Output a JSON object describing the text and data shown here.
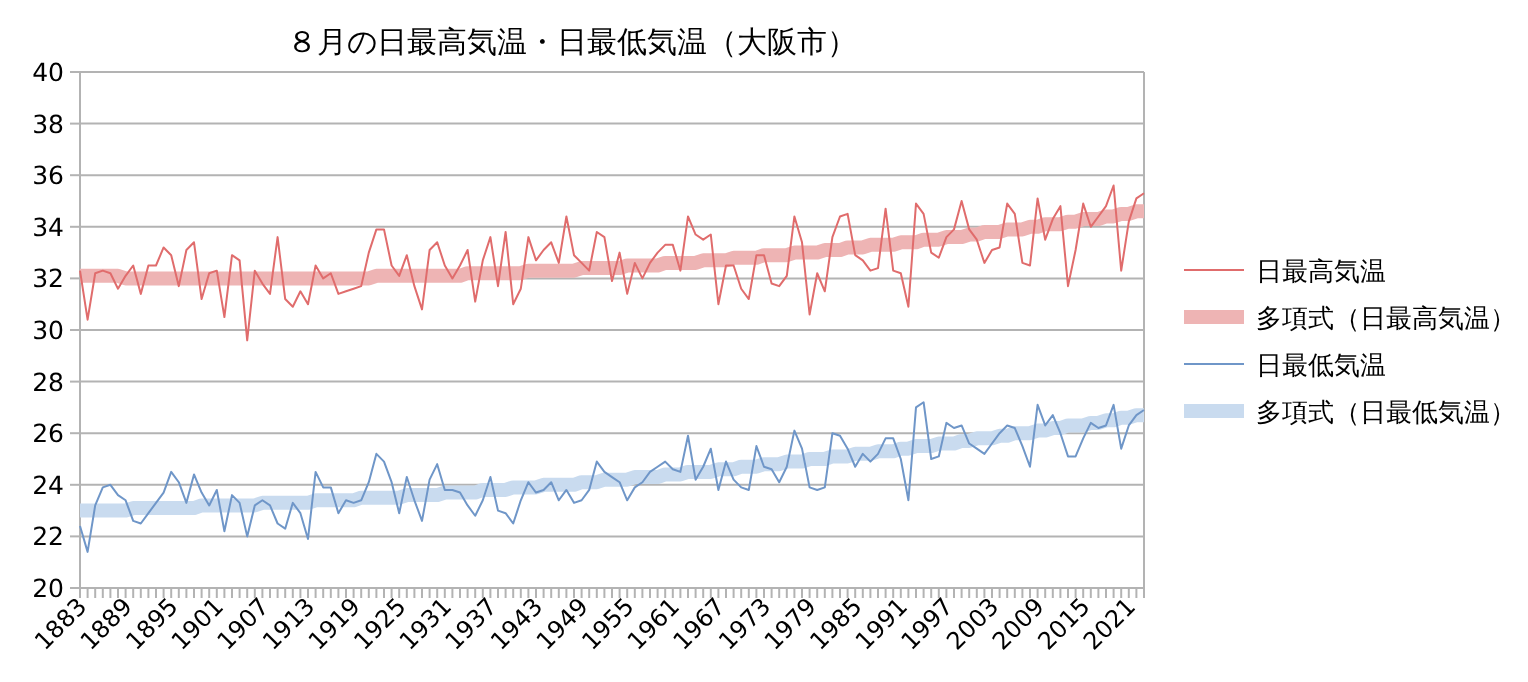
{
  "chart_data": {
    "type": "line",
    "title": "８月の日最高気温・日最低気温（大阪市）",
    "categories": [
      "1883",
      null,
      null,
      null,
      null,
      null,
      "1889",
      null,
      null,
      null,
      null,
      null,
      "1895",
      null,
      null,
      null,
      null,
      null,
      "1901",
      null,
      null,
      null,
      null,
      null,
      "1907",
      null,
      null,
      null,
      null,
      null,
      "1913",
      null,
      null,
      null,
      null,
      null,
      "1919",
      null,
      null,
      null,
      null,
      null,
      "1925",
      null,
      null,
      null,
      null,
      null,
      "1931",
      null,
      null,
      null,
      null,
      null,
      "1937",
      null,
      null,
      null,
      null,
      null,
      "1943",
      null,
      null,
      null,
      null,
      null,
      "1949",
      null,
      null,
      null,
      null,
      null,
      "1955",
      null,
      null,
      null,
      null,
      null,
      "1961",
      null,
      null,
      null,
      null,
      null,
      "1967",
      null,
      null,
      null,
      null,
      null,
      "1973",
      null,
      null,
      null,
      null,
      null,
      "1979",
      null,
      null,
      null,
      null,
      null,
      "1985",
      null,
      null,
      null,
      null,
      null,
      "1991",
      null,
      null,
      null,
      null,
      null,
      "1997",
      null,
      null,
      null,
      null,
      null,
      "2003",
      null,
      null,
      null,
      null,
      null,
      "2009",
      null,
      null,
      null,
      null,
      null,
      "2015",
      null,
      null,
      null,
      null,
      null,
      "2021",
      null,
      null
    ],
    "series": [
      {
        "name": "日最高気温",
        "color": "#e06c6c",
        "values": [
          32.3,
          30.4,
          32.2,
          32.3,
          32.2,
          31.6,
          32.1,
          32.5,
          31.4,
          32.5,
          32.5,
          33.2,
          32.9,
          31.7,
          33.1,
          33.4,
          31.2,
          32.2,
          32.3,
          30.5,
          32.9,
          32.7,
          29.6,
          32.3,
          31.8,
          31.4,
          33.6,
          31.2,
          30.9,
          31.5,
          31.0,
          32.5,
          32.0,
          32.2,
          31.4,
          31.5,
          31.6,
          31.7,
          33.0,
          33.9,
          33.9,
          32.5,
          32.1,
          32.9,
          31.7,
          30.8,
          33.1,
          33.4,
          32.5,
          32.0,
          32.5,
          33.1,
          31.1,
          32.7,
          33.6,
          31.7,
          33.8,
          31.0,
          31.6,
          33.6,
          32.7,
          33.1,
          33.4,
          32.6,
          34.4,
          32.9,
          32.6,
          32.3,
          33.8,
          33.6,
          31.9,
          33.0,
          31.4,
          32.6,
          32.0,
          32.6,
          33.0,
          33.3,
          33.3,
          32.3,
          34.4,
          33.7,
          33.5,
          33.7,
          31.0,
          32.5,
          32.5,
          31.6,
          31.2,
          32.9,
          32.9,
          31.8,
          31.7,
          32.1,
          34.4,
          33.4,
          30.6,
          32.2,
          31.5,
          33.6,
          34.4,
          34.5,
          32.9,
          32.7,
          32.3,
          32.4,
          34.7,
          32.3,
          32.2,
          30.9,
          34.9,
          34.5,
          33.0,
          32.8,
          33.6,
          33.9,
          35.0,
          33.9,
          33.5,
          32.6,
          33.1,
          33.2,
          34.9,
          34.5,
          32.6,
          32.5,
          35.1,
          33.5,
          34.3,
          34.8,
          31.7,
          33.1,
          34.9,
          34.0,
          34.4,
          34.8,
          35.6,
          32.3,
          34.2,
          35.1,
          35.3
        ]
      },
      {
        "name": "多項式（日最高気温）",
        "color": "#eeb4b4",
        "values": [
          32.1,
          32.1,
          32.1,
          32.1,
          32.1,
          32.1,
          32.0,
          32.0,
          32.0,
          32.0,
          32.0,
          32.0,
          32.0,
          32.0,
          32.0,
          32.0,
          32.0,
          32.0,
          32.0,
          32.0,
          32.0,
          32.0,
          32.0,
          32.0,
          32.0,
          32.0,
          32.0,
          32.0,
          32.0,
          32.0,
          32.0,
          32.0,
          32.0,
          32.0,
          32.0,
          32.0,
          32.0,
          32.0,
          32.0,
          32.1,
          32.1,
          32.1,
          32.1,
          32.1,
          32.1,
          32.1,
          32.1,
          32.1,
          32.1,
          32.1,
          32.1,
          32.2,
          32.2,
          32.2,
          32.2,
          32.2,
          32.2,
          32.2,
          32.2,
          32.3,
          32.3,
          32.3,
          32.3,
          32.3,
          32.3,
          32.3,
          32.4,
          32.4,
          32.4,
          32.4,
          32.4,
          32.4,
          32.5,
          32.5,
          32.5,
          32.5,
          32.5,
          32.6,
          32.6,
          32.6,
          32.6,
          32.6,
          32.7,
          32.7,
          32.7,
          32.7,
          32.8,
          32.8,
          32.8,
          32.8,
          32.9,
          32.9,
          32.9,
          32.9,
          33.0,
          33.0,
          33.0,
          33.0,
          33.1,
          33.1,
          33.1,
          33.2,
          33.2,
          33.2,
          33.3,
          33.3,
          33.3,
          33.3,
          33.4,
          33.4,
          33.4,
          33.5,
          33.5,
          33.5,
          33.6,
          33.6,
          33.6,
          33.7,
          33.7,
          33.8,
          33.8,
          33.8,
          33.9,
          33.9,
          33.9,
          34.0,
          34.0,
          34.1,
          34.1,
          34.1,
          34.2,
          34.2,
          34.3,
          34.3,
          34.3,
          34.4,
          34.4,
          34.5,
          34.5,
          34.6,
          34.6
        ]
      },
      {
        "name": "日最低気温",
        "color": "#6f96c8",
        "values": [
          22.4,
          21.4,
          23.2,
          23.9,
          24.0,
          23.6,
          23.4,
          22.6,
          22.5,
          22.9,
          23.3,
          23.7,
          24.5,
          24.1,
          23.3,
          24.4,
          23.7,
          23.2,
          23.8,
          22.2,
          23.6,
          23.3,
          22.0,
          23.2,
          23.4,
          23.2,
          22.5,
          22.3,
          23.3,
          22.9,
          21.9,
          24.5,
          23.9,
          23.9,
          22.9,
          23.4,
          23.3,
          23.4,
          24.1,
          25.2,
          24.9,
          24.1,
          22.9,
          24.3,
          23.4,
          22.6,
          24.2,
          24.8,
          23.8,
          23.8,
          23.7,
          23.2,
          22.8,
          23.4,
          24.3,
          23.0,
          22.9,
          22.5,
          23.4,
          24.1,
          23.7,
          23.8,
          24.1,
          23.4,
          23.8,
          23.3,
          23.4,
          23.8,
          24.9,
          24.5,
          24.3,
          24.1,
          23.4,
          23.9,
          24.1,
          24.5,
          24.7,
          24.9,
          24.6,
          24.5,
          25.9,
          24.2,
          24.7,
          25.4,
          23.8,
          24.9,
          24.2,
          23.9,
          23.8,
          25.5,
          24.7,
          24.6,
          24.1,
          24.7,
          26.1,
          25.4,
          23.9,
          23.8,
          23.9,
          26.0,
          25.9,
          25.4,
          24.7,
          25.2,
          24.9,
          25.2,
          25.8,
          25.8,
          25.0,
          23.4,
          27.0,
          27.2,
          25.0,
          25.1,
          26.4,
          26.2,
          26.3,
          25.6,
          25.4,
          25.2,
          25.6,
          26.0,
          26.3,
          26.2,
          25.5,
          24.7,
          27.1,
          26.3,
          26.7,
          26.0,
          25.1,
          25.1,
          25.8,
          26.4,
          26.2,
          26.3,
          27.1,
          25.4,
          26.3,
          26.7,
          26.9
        ]
      },
      {
        "name": "多項式（日最低気温）",
        "color": "#c9dbef",
        "values": [
          23.0,
          23.0,
          23.0,
          23.0,
          23.0,
          23.0,
          23.0,
          23.1,
          23.1,
          23.1,
          23.1,
          23.1,
          23.1,
          23.1,
          23.1,
          23.1,
          23.2,
          23.2,
          23.2,
          23.2,
          23.2,
          23.2,
          23.2,
          23.2,
          23.3,
          23.3,
          23.3,
          23.3,
          23.3,
          23.3,
          23.3,
          23.4,
          23.4,
          23.4,
          23.4,
          23.4,
          23.4,
          23.5,
          23.5,
          23.5,
          23.5,
          23.5,
          23.5,
          23.6,
          23.6,
          23.6,
          23.6,
          23.6,
          23.7,
          23.7,
          23.7,
          23.7,
          23.7,
          23.8,
          23.8,
          23.8,
          23.8,
          23.9,
          23.9,
          23.9,
          23.9,
          24.0,
          24.0,
          24.0,
          24.0,
          24.0,
          24.1,
          24.1,
          24.1,
          24.2,
          24.2,
          24.2,
          24.2,
          24.3,
          24.3,
          24.3,
          24.3,
          24.4,
          24.4,
          24.4,
          24.5,
          24.5,
          24.5,
          24.5,
          24.6,
          24.6,
          24.6,
          24.7,
          24.7,
          24.7,
          24.8,
          24.8,
          24.8,
          24.9,
          24.9,
          24.9,
          25.0,
          25.0,
          25.0,
          25.1,
          25.1,
          25.1,
          25.2,
          25.2,
          25.2,
          25.3,
          25.3,
          25.3,
          25.4,
          25.4,
          25.5,
          25.5,
          25.5,
          25.6,
          25.6,
          25.6,
          25.7,
          25.7,
          25.8,
          25.8,
          25.8,
          25.9,
          25.9,
          26.0,
          26.0,
          26.0,
          26.1,
          26.1,
          26.2,
          26.2,
          26.3,
          26.3,
          26.3,
          26.4,
          26.4,
          26.5,
          26.5,
          26.6,
          26.6,
          26.7,
          26.7
        ]
      }
    ],
    "ylim": [
      20,
      40
    ],
    "yticks": [
      20,
      22,
      24,
      26,
      28,
      30,
      32,
      34,
      36,
      38,
      40
    ],
    "grid": "y",
    "legend": "right"
  }
}
